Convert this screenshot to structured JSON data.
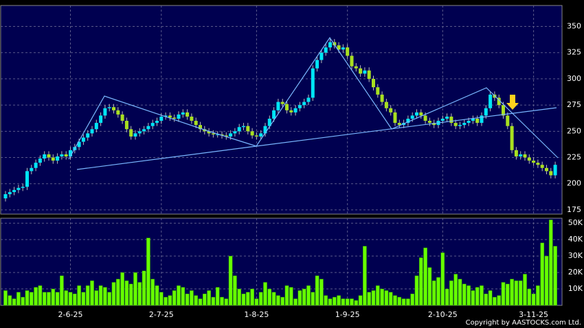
{
  "chart_data": {
    "type": "candlestick",
    "copyright": "Copyright by AASTOCKS.com Ltd.",
    "up_color": "#00e5f5",
    "down_color": "#a8e020",
    "volume_color": "#66ff00",
    "categories": [
      null,
      null,
      null,
      null,
      null,
      null,
      null,
      null,
      null,
      null,
      null,
      null,
      null,
      null,
      null,
      "2-6-25",
      null,
      null,
      null,
      null,
      null,
      null,
      null,
      null,
      null,
      null,
      null,
      null,
      null,
      null,
      null,
      null,
      null,
      null,
      null,
      null,
      "2-7-25",
      null,
      null,
      null,
      null,
      null,
      null,
      null,
      null,
      null,
      null,
      null,
      null,
      null,
      null,
      null,
      null,
      null,
      null,
      null,
      null,
      null,
      "1-8-25",
      null,
      null,
      null,
      null,
      null,
      null,
      null,
      null,
      null,
      null,
      null,
      null,
      null,
      null,
      null,
      null,
      null,
      null,
      null,
      null,
      "1-9-25",
      null,
      null,
      null,
      null,
      null,
      null,
      null,
      null,
      null,
      null,
      null,
      null,
      null,
      null,
      null,
      null,
      null,
      null,
      null,
      null,
      null,
      "2-10-25",
      null,
      null,
      null,
      null,
      null,
      null,
      null,
      null,
      null,
      null,
      null,
      null,
      null,
      null,
      null,
      null,
      null,
      null,
      null,
      null,
      "3-11-25",
      null,
      null,
      null,
      null,
      null
    ],
    "open": [
      186,
      190,
      192,
      194,
      196,
      197,
      212,
      215,
      220,
      224,
      228,
      225,
      222,
      226,
      228,
      226,
      232,
      235,
      240,
      244,
      248,
      252,
      258,
      265,
      272,
      273,
      270,
      266,
      260,
      252,
      245,
      248,
      250,
      252,
      255,
      258,
      260,
      264,
      265,
      263,
      262,
      266,
      268,
      264,
      260,
      256,
      252,
      250,
      248,
      247,
      247,
      246,
      245,
      248,
      250,
      254,
      255,
      250,
      246,
      245,
      248,
      255,
      262,
      270,
      278,
      276,
      270,
      268,
      272,
      275,
      278,
      282,
      310,
      318,
      325,
      330,
      335,
      332,
      328,
      330,
      322,
      312,
      310,
      305,
      308,
      300,
      292,
      285,
      278,
      272,
      268,
      258,
      256,
      258,
      262,
      265,
      268,
      265,
      260,
      258,
      256,
      260,
      262,
      264,
      258,
      255,
      256,
      258,
      260,
      262,
      258,
      265,
      272,
      285,
      282,
      275,
      265,
      255,
      232,
      226,
      228,
      225,
      222,
      220,
      218,
      215,
      212,
      208
    ],
    "high": [
      193,
      195,
      197,
      199,
      200,
      215,
      218,
      223,
      227,
      231,
      231,
      228,
      229,
      231,
      231,
      235,
      238,
      243,
      247,
      251,
      255,
      261,
      268,
      275,
      276,
      276,
      273,
      269,
      263,
      255,
      251,
      253,
      255,
      258,
      261,
      263,
      267,
      268,
      268,
      266,
      269,
      271,
      271,
      267,
      263,
      259,
      255,
      253,
      251,
      250,
      250,
      249,
      251,
      253,
      257,
      258,
      258,
      253,
      249,
      251,
      258,
      265,
      273,
      281,
      281,
      279,
      273,
      275,
      278,
      281,
      285,
      313,
      321,
      328,
      333,
      338,
      338,
      335,
      333,
      333,
      325,
      315,
      313,
      311,
      311,
      303,
      295,
      288,
      281,
      275,
      271,
      261,
      261,
      265,
      268,
      271,
      271,
      268,
      263,
      261,
      263,
      265,
      267,
      267,
      261,
      259,
      261,
      263,
      265,
      265,
      268,
      275,
      288,
      288,
      285,
      278,
      268,
      258,
      235,
      231,
      231,
      228,
      225,
      223,
      221,
      218,
      215,
      221
    ],
    "low": [
      183,
      187,
      189,
      191,
      193,
      194,
      209,
      212,
      217,
      221,
      222,
      219,
      219,
      223,
      223,
      223,
      229,
      232,
      237,
      241,
      245,
      249,
      255,
      262,
      269,
      267,
      263,
      257,
      249,
      242,
      242,
      245,
      247,
      249,
      252,
      255,
      257,
      261,
      260,
      259,
      259,
      263,
      261,
      257,
      253,
      249,
      247,
      245,
      244,
      244,
      243,
      242,
      242,
      245,
      247,
      251,
      247,
      243,
      242,
      242,
      245,
      252,
      259,
      267,
      273,
      267,
      265,
      265,
      269,
      272,
      275,
      279,
      307,
      315,
      322,
      327,
      329,
      325,
      325,
      319,
      309,
      307,
      302,
      302,
      297,
      289,
      282,
      275,
      269,
      265,
      255,
      253,
      253,
      255,
      259,
      262,
      262,
      257,
      255,
      253,
      253,
      257,
      259,
      255,
      252,
      252,
      253,
      255,
      257,
      255,
      255,
      262,
      269,
      279,
      272,
      262,
      252,
      229,
      223,
      223,
      222,
      219,
      217,
      215,
      212,
      209,
      205,
      205
    ],
    "close": [
      190,
      192,
      194,
      196,
      197,
      212,
      215,
      220,
      224,
      228,
      225,
      222,
      226,
      228,
      226,
      232,
      235,
      240,
      244,
      248,
      252,
      258,
      265,
      272,
      273,
      270,
      266,
      260,
      252,
      245,
      248,
      250,
      252,
      255,
      258,
      260,
      264,
      265,
      263,
      262,
      266,
      268,
      264,
      260,
      256,
      252,
      250,
      248,
      247,
      247,
      246,
      245,
      248,
      250,
      254,
      255,
      250,
      246,
      245,
      248,
      255,
      262,
      270,
      278,
      276,
      270,
      268,
      272,
      275,
      278,
      282,
      310,
      318,
      325,
      330,
      335,
      332,
      328,
      330,
      322,
      312,
      310,
      305,
      308,
      300,
      292,
      285,
      278,
      272,
      268,
      258,
      256,
      258,
      262,
      265,
      268,
      265,
      260,
      258,
      256,
      260,
      262,
      264,
      258,
      255,
      256,
      258,
      260,
      262,
      258,
      265,
      272,
      285,
      282,
      275,
      265,
      255,
      232,
      226,
      228,
      225,
      222,
      220,
      218,
      215,
      212,
      208,
      218
    ],
    "volume": [
      9000,
      6000,
      4000,
      8000,
      5000,
      9000,
      8000,
      11000,
      12000,
      8000,
      8000,
      10000,
      8000,
      18000,
      9000,
      8000,
      7000,
      12000,
      8000,
      12000,
      15000,
      9000,
      12000,
      11000,
      8000,
      14000,
      16000,
      20000,
      15000,
      13000,
      20000,
      14000,
      21000,
      41000,
      16000,
      12000,
      8000,
      5000,
      6000,
      9000,
      12000,
      11000,
      7000,
      9000,
      6000,
      4000,
      7000,
      9000,
      5000,
      11000,
      5000,
      4000,
      30000,
      18000,
      10000,
      7000,
      8000,
      10000,
      4000,
      8000,
      14000,
      10000,
      8000,
      6000,
      5000,
      12000,
      11000,
      4000,
      9000,
      10000,
      12000,
      8000,
      18000,
      16000,
      6000,
      4000,
      5000,
      6000,
      4000,
      4000,
      4000,
      3000,
      6000,
      36000,
      8000,
      9000,
      12000,
      10000,
      9000,
      8000,
      6000,
      5000,
      4000,
      4000,
      7000,
      18000,
      29000,
      35000,
      23000,
      15000,
      17000,
      32000,
      10000,
      15000,
      19000,
      16000,
      13000,
      12000,
      9000,
      11000,
      12000,
      7000,
      9000,
      5000,
      6000,
      14000,
      13000,
      16000,
      15000,
      15000,
      19000,
      10000,
      7000,
      12000,
      38000,
      30000,
      52000,
      36000
    ],
    "ylim": [
      171,
      370
    ],
    "yticks": [
      175,
      200,
      225,
      250,
      275,
      300,
      325,
      350
    ],
    "vlim": [
      0,
      53000
    ],
    "vticks": [
      {
        "value": 10000,
        "label": "10K"
      },
      {
        "value": 20000,
        "label": "20K"
      },
      {
        "value": 30000,
        "label": "30K"
      },
      {
        "value": 40000,
        "label": "40K"
      },
      {
        "value": 50000,
        "label": "50K"
      }
    ],
    "grid": true
  }
}
